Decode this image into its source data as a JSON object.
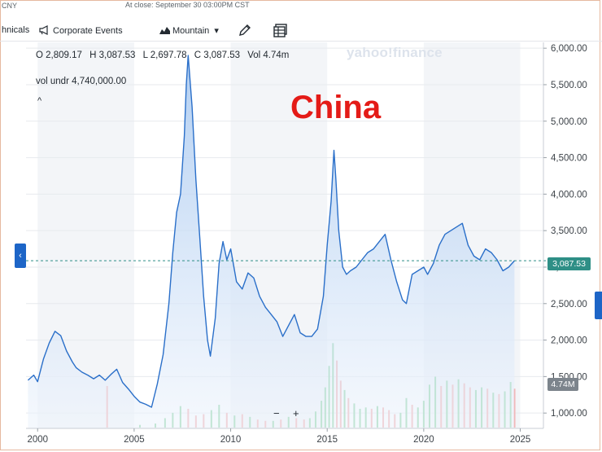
{
  "header": {
    "ticker_fragment": "CNY",
    "close_status": "At close: September 30 03:00PM CST"
  },
  "toolbar": {
    "technicals_label": "hnicals",
    "events_label": "Corporate Events",
    "chart_type_label": "Mountain",
    "chevron": "▾",
    "draw_icon": "pencil-icon",
    "table_icon": "table-icon"
  },
  "ohlc": {
    "open": "O 2,809.17",
    "high": "H 3,087.53",
    "low": "L 2,697.78",
    "close": "C 3,087.53",
    "volume": "Vol 4.74m"
  },
  "vol_underlay": "vol undr  4,740,000.00",
  "collapse_caret": "^",
  "watermark": "yahoo!finance",
  "annotation": "China",
  "price_tag": "3,087.53",
  "volume_tag": "4.74M",
  "zoom": {
    "minus": "−",
    "plus": "+"
  },
  "colors": {
    "line": "#2a6fc9",
    "area_top": "#a9c9f0",
    "area_bottom": "#eef4fc",
    "volume_up": "#7fcf98",
    "volume_down": "#f2a5a5",
    "price_tag": "#2e8f86",
    "annotation": "#e41b17",
    "handle": "#1d65c7"
  },
  "chart_data": {
    "type": "area",
    "title": "",
    "xlabel": "",
    "ylabel": "",
    "y_ticks": [
      "1,000.00",
      "1,500.00",
      "2,000.00",
      "2,500.00",
      "3,000.00",
      "3,500.00",
      "4,000.00",
      "4,500.00",
      "5,000.00",
      "5,500.00",
      "6,000.00"
    ],
    "y_tick_values": [
      1000,
      1500,
      2000,
      2500,
      3000,
      3500,
      4000,
      4500,
      5000,
      5500,
      6000
    ],
    "x_ticks": [
      "2000",
      "2005",
      "2010",
      "2015",
      "2020",
      "2025"
    ],
    "x_tick_values": [
      2000,
      2005,
      2010,
      2015,
      2020,
      2025
    ],
    "ylim": [
      790,
      6080
    ],
    "xlim": [
      1999.4,
      2026.2
    ],
    "grid": true,
    "shaded_bands": [
      [
        2000,
        2005
      ],
      [
        2010,
        2015
      ],
      [
        2020,
        2025
      ]
    ],
    "current_value": 3087.53,
    "series": [
      {
        "x": [
          1999.5,
          1999.8,
          2000.0,
          2000.3,
          2000.6,
          2000.9,
          2001.2,
          2001.5,
          2001.8,
          2002.0,
          2002.3,
          2002.6,
          2002.9,
          2003.2,
          2003.5,
          2003.8,
          2004.1,
          2004.4,
          2004.7,
          2005.0,
          2005.3,
          2005.6,
          2005.9,
          2006.2,
          2006.5,
          2006.8,
          2007.0,
          2007.2,
          2007.4,
          2007.6,
          2007.7,
          2007.8,
          2008.0,
          2008.2,
          2008.4,
          2008.6,
          2008.8,
          2008.95,
          2009.2,
          2009.4,
          2009.6,
          2009.8,
          2010.0,
          2010.3,
          2010.6,
          2010.9,
          2011.2,
          2011.5,
          2011.8,
          2012.1,
          2012.4,
          2012.7,
          2013.0,
          2013.3,
          2013.6,
          2013.9,
          2014.2,
          2014.5,
          2014.8,
          2015.0,
          2015.2,
          2015.35,
          2015.45,
          2015.6,
          2015.8,
          2016.0,
          2016.2,
          2016.5,
          2016.8,
          2017.1,
          2017.4,
          2017.7,
          2018.0,
          2018.3,
          2018.6,
          2018.9,
          2019.1,
          2019.4,
          2019.7,
          2020.0,
          2020.2,
          2020.5,
          2020.8,
          2021.1,
          2021.4,
          2021.7,
          2022.0,
          2022.3,
          2022.6,
          2022.9,
          2023.2,
          2023.5,
          2023.8,
          2024.1,
          2024.4,
          2024.7
        ],
        "values": [
          1450,
          1520,
          1430,
          1740,
          1960,
          2120,
          2060,
          1850,
          1700,
          1620,
          1560,
          1520,
          1470,
          1520,
          1450,
          1530,
          1600,
          1420,
          1330,
          1230,
          1150,
          1120,
          1080,
          1400,
          1800,
          2500,
          3200,
          3750,
          4000,
          4800,
          5500,
          5900,
          5200,
          4200,
          3400,
          2600,
          2000,
          1780,
          2300,
          3050,
          3350,
          3100,
          3250,
          2800,
          2700,
          2920,
          2850,
          2600,
          2450,
          2350,
          2250,
          2050,
          2200,
          2350,
          2100,
          2050,
          2050,
          2150,
          2600,
          3300,
          3900,
          4600,
          4200,
          3500,
          3000,
          2900,
          2950,
          3000,
          3100,
          3200,
          3250,
          3350,
          3450,
          3100,
          2800,
          2550,
          2500,
          2900,
          2950,
          3000,
          2900,
          3050,
          3300,
          3450,
          3500,
          3550,
          3600,
          3300,
          3150,
          3100,
          3250,
          3200,
          3100,
          2950,
          3000,
          3087.53
        ]
      }
    ],
    "volume": {
      "ylim": [
        0,
        8.2
      ],
      "x": [
        2003.6,
        2005.3,
        2006.1,
        2006.6,
        2007.0,
        2007.4,
        2007.8,
        2008.2,
        2008.6,
        2009.0,
        2009.4,
        2009.8,
        2010.2,
        2010.6,
        2011.0,
        2011.4,
        2011.8,
        2012.2,
        2012.6,
        2013.0,
        2013.4,
        2013.8,
        2014.1,
        2014.4,
        2014.7,
        2014.9,
        2015.1,
        2015.3,
        2015.5,
        2015.7,
        2015.9,
        2016.1,
        2016.4,
        2016.7,
        2017.0,
        2017.3,
        2017.6,
        2017.9,
        2018.2,
        2018.5,
        2018.8,
        2019.1,
        2019.4,
        2019.7,
        2020.0,
        2020.3,
        2020.6,
        2020.9,
        2021.2,
        2021.5,
        2021.8,
        2022.1,
        2022.4,
        2022.7,
        2023.0,
        2023.3,
        2023.6,
        2023.9,
        2024.2,
        2024.5,
        2024.7
      ],
      "values": [
        3.1,
        0.2,
        0.3,
        0.7,
        1.1,
        1.6,
        1.4,
        0.9,
        1.0,
        1.3,
        1.7,
        1.1,
        0.9,
        1.0,
        0.8,
        0.6,
        0.5,
        0.5,
        0.6,
        0.8,
        0.7,
        0.6,
        0.7,
        1.2,
        2.0,
        3.0,
        4.6,
        6.3,
        5.0,
        3.5,
        2.8,
        2.2,
        1.8,
        1.4,
        1.5,
        1.4,
        1.6,
        1.5,
        1.3,
        1.0,
        1.1,
        2.2,
        1.7,
        1.5,
        2.0,
        3.2,
        3.8,
        3.1,
        3.5,
        3.2,
        3.6,
        3.3,
        3.0,
        2.8,
        3.0,
        2.9,
        2.6,
        2.5,
        2.7,
        3.4,
        2.9
      ],
      "direction": [
        "down",
        "up",
        "up",
        "up",
        "up",
        "up",
        "down",
        "down",
        "down",
        "up",
        "up",
        "down",
        "up",
        "down",
        "up",
        "down",
        "down",
        "up",
        "down",
        "up",
        "down",
        "down",
        "up",
        "up",
        "up",
        "up",
        "up",
        "up",
        "down",
        "down",
        "up",
        "down",
        "up",
        "up",
        "up",
        "down",
        "up",
        "down",
        "down",
        "down",
        "up",
        "up",
        "down",
        "up",
        "up",
        "up",
        "up",
        "down",
        "up",
        "down",
        "up",
        "down",
        "down",
        "up",
        "up",
        "down",
        "up",
        "down",
        "up",
        "up",
        "down"
      ]
    }
  }
}
